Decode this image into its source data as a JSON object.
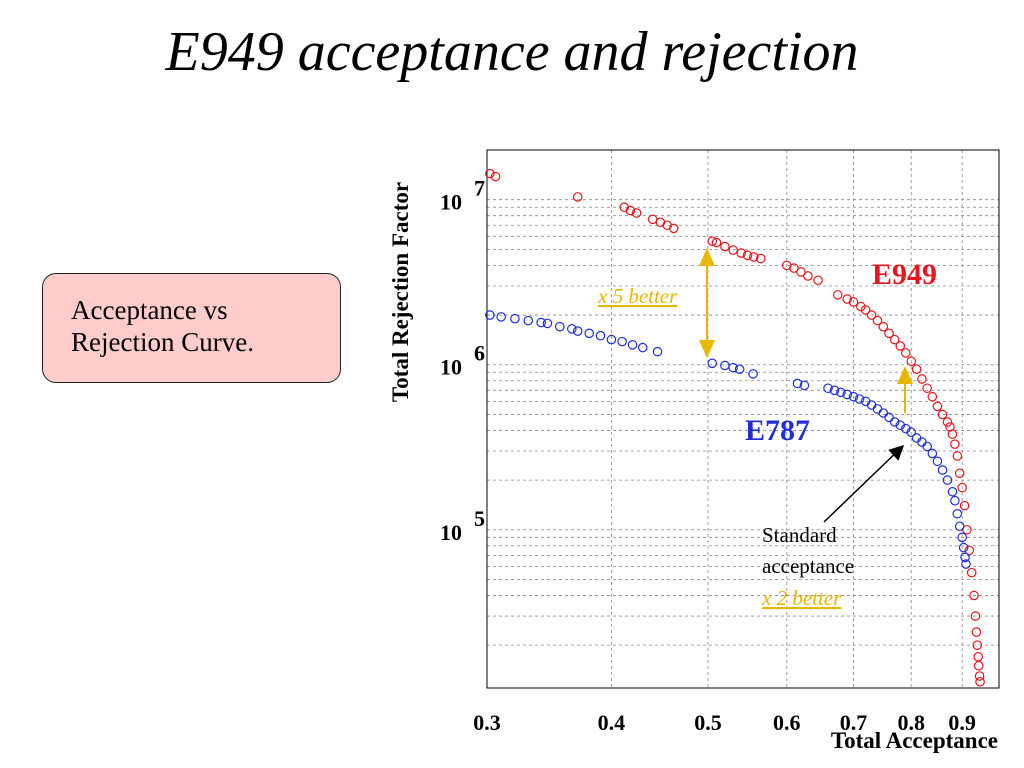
{
  "slide": {
    "title": "E949 acceptance and rejection",
    "callout": {
      "line1": "Acceptance vs",
      "line2": "Rejection Curve."
    }
  },
  "colors": {
    "e949": "#e8151c",
    "e787": "#1f2fd8",
    "annotation": "#e8b800"
  },
  "chart_data": {
    "type": "scatter",
    "xlabel": "Total Acceptance",
    "ylabel": "Total Rejection Factor",
    "xscale": "log",
    "yscale": "log",
    "xlim": [
      0.3,
      0.98
    ],
    "ylim": [
      11000,
      20000000
    ],
    "grid": true,
    "x_ticks": [
      {
        "value": 0.3,
        "label": "0.3"
      },
      {
        "value": 0.4,
        "label": "0.4"
      },
      {
        "value": 0.5,
        "label": "0.5"
      },
      {
        "value": 0.6,
        "label": "0.6"
      },
      {
        "value": 0.7,
        "label": "0.7"
      },
      {
        "value": 0.8,
        "label": "0.8"
      },
      {
        "value": 0.9,
        "label": "0.9"
      }
    ],
    "y_ticks": [
      {
        "value": 10000000,
        "base": "10",
        "exp": "7"
      },
      {
        "value": 1000000,
        "base": "10",
        "exp": "6"
      },
      {
        "value": 100000,
        "base": "10",
        "exp": "5"
      }
    ],
    "series": [
      {
        "name": "E949",
        "color": "#e8151c",
        "points": [
          [
            0.302,
            14400000
          ],
          [
            0.306,
            13800000
          ],
          [
            0.37,
            10400000
          ],
          [
            0.412,
            9000000
          ],
          [
            0.418,
            8600000
          ],
          [
            0.424,
            8300000
          ],
          [
            0.44,
            7600000
          ],
          [
            0.448,
            7300000
          ],
          [
            0.455,
            7000000
          ],
          [
            0.462,
            6700000
          ],
          [
            0.505,
            5600000
          ],
          [
            0.51,
            5500000
          ],
          [
            0.52,
            5200000
          ],
          [
            0.53,
            4950000
          ],
          [
            0.54,
            4750000
          ],
          [
            0.548,
            4600000
          ],
          [
            0.556,
            4500000
          ],
          [
            0.565,
            4400000
          ],
          [
            0.6,
            4000000
          ],
          [
            0.61,
            3850000
          ],
          [
            0.62,
            3650000
          ],
          [
            0.63,
            3450000
          ],
          [
            0.645,
            3250000
          ],
          [
            0.675,
            2650000
          ],
          [
            0.69,
            2500000
          ],
          [
            0.7,
            2400000
          ],
          [
            0.712,
            2250000
          ],
          [
            0.72,
            2150000
          ],
          [
            0.73,
            2000000
          ],
          [
            0.74,
            1850000
          ],
          [
            0.75,
            1700000
          ],
          [
            0.76,
            1550000
          ],
          [
            0.77,
            1420000
          ],
          [
            0.78,
            1300000
          ],
          [
            0.79,
            1180000
          ],
          [
            0.8,
            1050000
          ],
          [
            0.81,
            940000
          ],
          [
            0.82,
            820000
          ],
          [
            0.83,
            720000
          ],
          [
            0.84,
            640000
          ],
          [
            0.85,
            560000
          ],
          [
            0.86,
            500000
          ],
          [
            0.87,
            450000
          ],
          [
            0.875,
            420000
          ],
          [
            0.88,
            380000
          ],
          [
            0.885,
            330000
          ],
          [
            0.89,
            280000
          ],
          [
            0.895,
            220000
          ],
          [
            0.9,
            180000
          ],
          [
            0.905,
            140000
          ],
          [
            0.91,
            100000
          ],
          [
            0.915,
            75000
          ],
          [
            0.92,
            55000
          ],
          [
            0.925,
            40000
          ],
          [
            0.928,
            30000
          ],
          [
            0.93,
            24000
          ],
          [
            0.932,
            20000
          ],
          [
            0.934,
            17000
          ],
          [
            0.935,
            15000
          ],
          [
            0.937,
            13000
          ],
          [
            0.938,
            12000
          ]
        ]
      },
      {
        "name": "E787",
        "color": "#1f2fd8",
        "points": [
          [
            0.302,
            2000000
          ],
          [
            0.31,
            1950000
          ],
          [
            0.32,
            1900000
          ],
          [
            0.33,
            1850000
          ],
          [
            0.34,
            1800000
          ],
          [
            0.345,
            1780000
          ],
          [
            0.355,
            1700000
          ],
          [
            0.365,
            1650000
          ],
          [
            0.37,
            1600000
          ],
          [
            0.38,
            1550000
          ],
          [
            0.39,
            1500000
          ],
          [
            0.4,
            1420000
          ],
          [
            0.41,
            1380000
          ],
          [
            0.42,
            1320000
          ],
          [
            0.43,
            1270000
          ],
          [
            0.445,
            1200000
          ],
          [
            0.505,
            1020000
          ],
          [
            0.52,
            990000
          ],
          [
            0.53,
            960000
          ],
          [
            0.538,
            940000
          ],
          [
            0.555,
            880000
          ],
          [
            0.615,
            770000
          ],
          [
            0.625,
            750000
          ],
          [
            0.66,
            720000
          ],
          [
            0.67,
            700000
          ],
          [
            0.68,
            680000
          ],
          [
            0.69,
            660000
          ],
          [
            0.7,
            640000
          ],
          [
            0.71,
            620000
          ],
          [
            0.72,
            600000
          ],
          [
            0.73,
            570000
          ],
          [
            0.74,
            540000
          ],
          [
            0.75,
            510000
          ],
          [
            0.76,
            480000
          ],
          [
            0.77,
            450000
          ],
          [
            0.78,
            430000
          ],
          [
            0.79,
            410000
          ],
          [
            0.8,
            390000
          ],
          [
            0.81,
            360000
          ],
          [
            0.82,
            340000
          ],
          [
            0.83,
            320000
          ],
          [
            0.84,
            290000
          ],
          [
            0.85,
            260000
          ],
          [
            0.86,
            230000
          ],
          [
            0.87,
            200000
          ],
          [
            0.88,
            170000
          ],
          [
            0.885,
            150000
          ],
          [
            0.89,
            125000
          ],
          [
            0.895,
            105000
          ],
          [
            0.9,
            90000
          ],
          [
            0.903,
            78000
          ],
          [
            0.906,
            68000
          ],
          [
            0.908,
            62000
          ]
        ]
      }
    ],
    "annotations": {
      "label_e949": "E949",
      "label_e787": "E787",
      "x5_better": "x 5 better",
      "standard_line1": "Standard",
      "standard_line2": "acceptance",
      "x2_better": "x 2 better"
    }
  }
}
